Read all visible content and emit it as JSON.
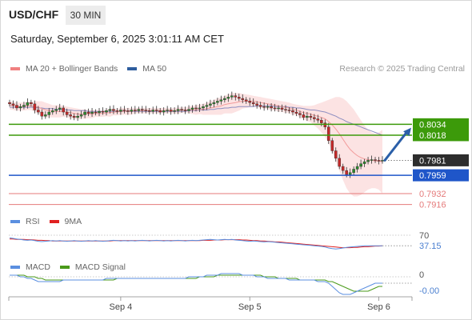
{
  "header": {
    "symbol": "USD/CHF",
    "timeframe": "30 MIN",
    "datetime": "Saturday, September 6, 2025 3:01:11 AM CET"
  },
  "credit": "Research © 2025 Trading Central",
  "legends": {
    "main": [
      {
        "label": "MA 20 + Bollinger Bands",
        "color": "#f08080"
      },
      {
        "label": "MA 50",
        "color": "#2e5d9e"
      }
    ],
    "rsi": [
      {
        "label": "RSI",
        "color": "#5b8fe0"
      },
      {
        "label": "9MA",
        "color": "#e02020"
      }
    ],
    "macd": [
      {
        "label": "MACD",
        "color": "#5b8fe0"
      },
      {
        "label": "MACD Signal",
        "color": "#4a9a1a"
      }
    ]
  },
  "colors": {
    "resistance": "#3c9a0a",
    "support": "#1f56c9",
    "target": "#e57a7a",
    "last_price": "#2d2d2d",
    "arrow": "#2b5fa8"
  },
  "chart_data": [
    {
      "type": "candlestick",
      "instrument": "USD/CHF",
      "ylim": [
        0.7905,
        0.8105
      ],
      "x_ticks": [
        "Sep 4",
        "Sep 5",
        "Sep 6"
      ],
      "levels": [
        {
          "value": 0.8034,
          "label": "0.8034",
          "kind": "resistance"
        },
        {
          "value": 0.8018,
          "label": "0.8018",
          "kind": "resistance"
        },
        {
          "value": 0.7981,
          "label": "0.7981",
          "kind": "last"
        },
        {
          "value": 0.7959,
          "label": "0.7959",
          "kind": "support"
        },
        {
          "value": 0.7932,
          "label": "0.7932",
          "kind": "target"
        },
        {
          "value": 0.7916,
          "label": "0.7916",
          "kind": "target"
        }
      ],
      "close": [
        0.8064,
        0.8062,
        0.8058,
        0.806,
        0.8062,
        0.8066,
        0.8064,
        0.8055,
        0.8052,
        0.8046,
        0.8048,
        0.8052,
        0.8054,
        0.8056,
        0.8058,
        0.8052,
        0.8048,
        0.8046,
        0.8044,
        0.8046,
        0.8048,
        0.8052,
        0.805,
        0.8052,
        0.8051,
        0.8053,
        0.8052,
        0.8054,
        0.8056,
        0.8054,
        0.8053,
        0.8055,
        0.8054,
        0.8053,
        0.8055,
        0.8054,
        0.8056,
        0.8055,
        0.8054,
        0.8053,
        0.8055,
        0.8054,
        0.8052,
        0.8054,
        0.8055,
        0.8053,
        0.8054,
        0.8056,
        0.8055,
        0.8054,
        0.8056,
        0.8058,
        0.8057,
        0.8058,
        0.806,
        0.8062,
        0.8064,
        0.8066,
        0.8068,
        0.807,
        0.8072,
        0.8074,
        0.8076,
        0.8074,
        0.8072,
        0.807,
        0.8068,
        0.8066,
        0.8064,
        0.8062,
        0.806,
        0.8059,
        0.806,
        0.8058,
        0.8057,
        0.8058,
        0.8056,
        0.8055,
        0.8054,
        0.8052,
        0.805,
        0.8048,
        0.8044,
        0.8046,
        0.8044,
        0.8042,
        0.804,
        0.8036,
        0.803,
        0.801,
        0.7995,
        0.7984,
        0.7972,
        0.7966,
        0.796,
        0.7963,
        0.7968,
        0.7972,
        0.7976,
        0.7979,
        0.7981,
        0.7982,
        0.7981,
        0.798,
        0.7981
      ],
      "ma20": [
        0.8062,
        0.8061,
        0.806,
        0.806,
        0.806,
        0.8061,
        0.8061,
        0.806,
        0.8059,
        0.8057,
        0.8055,
        0.8054,
        0.8053,
        0.8053,
        0.8053,
        0.8053,
        0.8052,
        0.8051,
        0.805,
        0.8049,
        0.8049,
        0.8049,
        0.8049,
        0.8049,
        0.805,
        0.805,
        0.805,
        0.8051,
        0.8051,
        0.8052,
        0.8052,
        0.8053,
        0.8053,
        0.8053,
        0.8053,
        0.8054,
        0.8054,
        0.8054,
        0.8054,
        0.8054,
        0.8054,
        0.8054,
        0.8054,
        0.8054,
        0.8054,
        0.8054,
        0.8054,
        0.8054,
        0.8055,
        0.8055,
        0.8055,
        0.8055,
        0.8055,
        0.8056,
        0.8056,
        0.8057,
        0.8058,
        0.8059,
        0.806,
        0.8061,
        0.8063,
        0.8064,
        0.8065,
        0.8066,
        0.8067,
        0.8068,
        0.8068,
        0.8068,
        0.8068,
        0.8067,
        0.8066,
        0.8065,
        0.8064,
        0.8063,
        0.8062,
        0.8061,
        0.806,
        0.8059,
        0.8058,
        0.8056,
        0.8055,
        0.8053,
        0.8051,
        0.805,
        0.8049,
        0.8047,
        0.8046,
        0.8044,
        0.8042,
        0.8038,
        0.8033,
        0.8027,
        0.802,
        0.8012,
        0.8004,
        0.7997,
        0.7992,
        0.7988,
        0.7985,
        0.7983,
        0.7982,
        0.7981,
        0.798,
        0.798,
        0.7979
      ],
      "ma50": [
        0.8059,
        0.8059,
        0.8059,
        0.8059,
        0.8059,
        0.8059,
        0.8059,
        0.8059,
        0.8058,
        0.8058,
        0.8057,
        0.8057,
        0.8057,
        0.8056,
        0.8056,
        0.8056,
        0.8055,
        0.8055,
        0.8054,
        0.8054,
        0.8054,
        0.8054,
        0.8053,
        0.8053,
        0.8053,
        0.8053,
        0.8053,
        0.8053,
        0.8053,
        0.8053,
        0.8053,
        0.8053,
        0.8053,
        0.8053,
        0.8053,
        0.8053,
        0.8053,
        0.8053,
        0.8053,
        0.8053,
        0.8053,
        0.8053,
        0.8053,
        0.8053,
        0.8053,
        0.8053,
        0.8053,
        0.8053,
        0.8053,
        0.8053,
        0.8054,
        0.8054,
        0.8054,
        0.8055,
        0.8055,
        0.8055,
        0.8056,
        0.8056,
        0.8057,
        0.8057,
        0.8058,
        0.8058,
        0.8059,
        0.8059,
        0.806,
        0.806,
        0.806,
        0.806,
        0.806,
        0.8061,
        0.8061,
        0.8061,
        0.8061,
        0.8061,
        0.806,
        0.806,
        0.806,
        0.806,
        0.8059,
        0.8059,
        0.8058,
        0.8058,
        0.8057,
        0.8056,
        0.8055,
        0.8055,
        0.8054,
        0.8053,
        0.8052,
        0.805,
        0.8048,
        0.8046,
        0.8043,
        0.8041,
        0.8038,
        0.8036,
        0.8034,
        0.8032,
        0.803,
        0.8028,
        0.8026,
        0.8024,
        0.8022,
        0.802,
        0.8018
      ],
      "bb_upper": [
        0.8068,
        0.8067,
        0.8066,
        0.8066,
        0.8066,
        0.8067,
        0.8067,
        0.8068,
        0.8068,
        0.8068,
        0.8066,
        0.8064,
        0.8062,
        0.8062,
        0.8062,
        0.8061,
        0.806,
        0.8059,
        0.8058,
        0.8057,
        0.8056,
        0.8056,
        0.8055,
        0.8055,
        0.8055,
        0.8055,
        0.8055,
        0.8056,
        0.8057,
        0.8057,
        0.8057,
        0.8058,
        0.8058,
        0.8058,
        0.8058,
        0.8058,
        0.8058,
        0.8058,
        0.8058,
        0.8058,
        0.8058,
        0.8058,
        0.8058,
        0.8058,
        0.8058,
        0.8058,
        0.8058,
        0.8059,
        0.8059,
        0.8059,
        0.806,
        0.8061,
        0.8062,
        0.8063,
        0.8064,
        0.8066,
        0.8068,
        0.807,
        0.8072,
        0.8074,
        0.8076,
        0.8078,
        0.808,
        0.808,
        0.808,
        0.8079,
        0.8078,
        0.8077,
        0.8076,
        0.8075,
        0.8074,
        0.8073,
        0.8072,
        0.8071,
        0.807,
        0.8069,
        0.8068,
        0.8067,
        0.8066,
        0.8064,
        0.8063,
        0.8062,
        0.8061,
        0.8061,
        0.8061,
        0.8062,
        0.8064,
        0.8066,
        0.8068,
        0.807,
        0.8072,
        0.8074,
        0.8074,
        0.8072,
        0.8068,
        0.8062,
        0.8056,
        0.8048,
        0.804,
        0.8032,
        0.8026,
        0.8022,
        0.802,
        0.8022,
        0.8026
      ],
      "bb_lower": [
        0.8056,
        0.8055,
        0.8054,
        0.8054,
        0.8054,
        0.8055,
        0.8055,
        0.8052,
        0.805,
        0.8046,
        0.8044,
        0.8044,
        0.8044,
        0.8044,
        0.8044,
        0.8045,
        0.8044,
        0.8043,
        0.8042,
        0.8041,
        0.8042,
        0.8042,
        0.8043,
        0.8043,
        0.8045,
        0.8045,
        0.8045,
        0.8046,
        0.8045,
        0.8047,
        0.8047,
        0.8048,
        0.8048,
        0.8048,
        0.8048,
        0.805,
        0.805,
        0.805,
        0.805,
        0.805,
        0.805,
        0.805,
        0.805,
        0.805,
        0.805,
        0.805,
        0.805,
        0.8049,
        0.8051,
        0.8051,
        0.805,
        0.8049,
        0.8048,
        0.8049,
        0.8048,
        0.8048,
        0.8048,
        0.8048,
        0.8048,
        0.8048,
        0.805,
        0.805,
        0.805,
        0.8052,
        0.8054,
        0.8057,
        0.8058,
        0.8059,
        0.806,
        0.8059,
        0.8058,
        0.8057,
        0.8056,
        0.8055,
        0.8054,
        0.8053,
        0.8052,
        0.8051,
        0.805,
        0.8048,
        0.8047,
        0.8044,
        0.8041,
        0.8039,
        0.8037,
        0.8032,
        0.8028,
        0.8022,
        0.8016,
        0.8006,
        0.7994,
        0.798,
        0.7966,
        0.7952,
        0.794,
        0.7932,
        0.7928,
        0.7928,
        0.793,
        0.7934,
        0.7938,
        0.794,
        0.794,
        0.7938,
        0.7932
      ]
    },
    {
      "type": "line",
      "panel": "RSI",
      "levels": [
        {
          "value": 70,
          "label": "70"
        }
      ],
      "current": "37.15",
      "ylim": [
        0,
        100
      ],
      "series": [
        {
          "name": "RSI",
          "values": [
            62,
            60,
            58,
            57,
            55,
            54,
            55,
            53,
            51,
            50,
            51,
            52,
            53,
            52,
            53,
            52,
            51,
            52,
            53,
            52,
            51,
            52,
            53,
            52,
            53,
            52,
            51,
            52,
            53,
            54,
            53,
            52,
            53,
            52,
            53,
            52,
            53,
            54,
            53,
            52,
            53,
            54,
            53,
            52,
            53,
            52,
            53,
            54,
            53,
            52,
            53,
            54,
            53,
            54,
            55,
            56,
            57,
            56,
            55,
            56,
            57,
            56,
            57,
            55,
            54,
            53,
            52,
            51,
            52,
            51,
            50,
            49,
            50,
            49,
            48,
            47,
            46,
            45,
            44,
            43,
            42,
            41,
            40,
            39,
            38,
            37,
            36,
            35,
            33,
            30,
            28,
            27,
            28,
            30,
            32,
            33,
            34,
            35,
            36,
            37,
            37,
            37,
            37,
            37,
            37
          ]
        },
        {
          "name": "9MA",
          "values": [
            58,
            58,
            57,
            57,
            57,
            56,
            56,
            55,
            54,
            54,
            53,
            53,
            52,
            52,
            52,
            52,
            52,
            52,
            52,
            52,
            52,
            52,
            52,
            52,
            52,
            52,
            52,
            52,
            52,
            53,
            53,
            53,
            53,
            53,
            53,
            53,
            53,
            53,
            53,
            53,
            53,
            53,
            53,
            53,
            53,
            53,
            53,
            53,
            53,
            53,
            53,
            53,
            53,
            53,
            54,
            54,
            54,
            55,
            55,
            55,
            56,
            56,
            56,
            56,
            56,
            55,
            55,
            54,
            53,
            53,
            52,
            52,
            51,
            50,
            49,
            49,
            48,
            47,
            46,
            45,
            44,
            43,
            42,
            41,
            40,
            39,
            38,
            37,
            36,
            35,
            34,
            33,
            32,
            31,
            31,
            31,
            32,
            32,
            33,
            34,
            34,
            35,
            36,
            36,
            37
          ]
        }
      ]
    },
    {
      "type": "line",
      "panel": "MACD",
      "levels": [
        {
          "value": 0,
          "label": "0"
        }
      ],
      "current": "-0.00",
      "ylim": [
        -0.0012,
        0.0003
      ],
      "series": [
        {
          "name": "MACD",
          "values": [
            0.0001,
            0.0001,
            0.0001,
            0.0,
            0.0,
            -0.0001,
            -0.0001,
            -0.0002,
            -0.0003,
            -0.0003,
            -0.0003,
            -0.0003,
            -0.0003,
            -0.0003,
            -0.0003,
            -0.0002,
            -0.0002,
            -0.0002,
            -0.0002,
            -0.0002,
            -0.0002,
            -0.0002,
            -0.0002,
            -0.0002,
            -0.0002,
            -0.0002,
            -0.0002,
            -0.0001,
            -0.0001,
            -0.0001,
            -0.0001,
            -0.0001,
            -0.0001,
            -0.0001,
            -0.0001,
            -0.0001,
            -0.0001,
            -0.0001,
            -0.0001,
            -0.0001,
            -0.0001,
            -0.0001,
            -0.0001,
            -0.0001,
            -0.0001,
            -0.0001,
            -0.0001,
            -0.0001,
            -0.0001,
            -0.0001,
            0.0,
            0.0,
            0.0,
            0.0,
            0.0,
            0.0001,
            0.0001,
            0.0001,
            0.0001,
            0.0002,
            0.0002,
            0.0002,
            0.0002,
            0.0002,
            0.0002,
            0.0001,
            0.0001,
            0.0001,
            0.0001,
            0.0,
            0.0,
            0.0,
            -0.0001,
            -0.0001,
            -0.0001,
            -0.0001,
            -0.0001,
            -0.0001,
            -0.0002,
            -0.0002,
            -0.0002,
            -0.0002,
            -0.0002,
            -0.0002,
            -0.0002,
            -0.0002,
            -0.0003,
            -0.0003,
            -0.0003,
            -0.0004,
            -0.0006,
            -0.0008,
            -0.001,
            -0.0011,
            -0.0011,
            -0.0011,
            -0.001,
            -0.0009,
            -0.0008,
            -0.0007,
            -0.0006,
            -0.0005,
            -0.0004,
            -0.0004,
            -0.0004
          ]
        },
        {
          "name": "MACD Signal",
          "values": [
            0.0001,
            0.0001,
            0.0001,
            0.0001,
            0.0001,
            0.0,
            0.0,
            0.0,
            -0.0001,
            -0.0001,
            -0.0002,
            -0.0002,
            -0.0002,
            -0.0002,
            -0.0002,
            -0.0002,
            -0.0002,
            -0.0002,
            -0.0002,
            -0.0002,
            -0.0002,
            -0.0002,
            -0.0002,
            -0.0002,
            -0.0002,
            -0.0002,
            -0.0002,
            -0.0002,
            -0.0002,
            -0.0002,
            -0.0001,
            -0.0001,
            -0.0001,
            -0.0001,
            -0.0001,
            -0.0001,
            -0.0001,
            -0.0001,
            -0.0001,
            -0.0001,
            -0.0001,
            -0.0001,
            -0.0001,
            -0.0001,
            -0.0001,
            -0.0001,
            -0.0001,
            -0.0001,
            -0.0001,
            -0.0001,
            -0.0001,
            -0.0001,
            -0.0001,
            0.0,
            0.0,
            0.0,
            0.0,
            0.0,
            0.0001,
            0.0001,
            0.0001,
            0.0001,
            0.0001,
            0.0001,
            0.0001,
            0.0001,
            0.0001,
            0.0001,
            0.0001,
            0.0001,
            0.0001,
            0.0,
            0.0,
            0.0,
            0.0,
            -0.0001,
            -0.0001,
            -0.0001,
            -0.0001,
            -0.0001,
            -0.0001,
            -0.0002,
            -0.0002,
            -0.0002,
            -0.0002,
            -0.0002,
            -0.0002,
            -0.0002,
            -0.0002,
            -0.0003,
            -0.0003,
            -0.0004,
            -0.0005,
            -0.0006,
            -0.0007,
            -0.0008,
            -0.0009,
            -0.0009,
            -0.0009,
            -0.0009,
            -0.0009,
            -0.0008,
            -0.0007,
            -0.0006,
            -0.0006
          ]
        }
      ]
    }
  ]
}
